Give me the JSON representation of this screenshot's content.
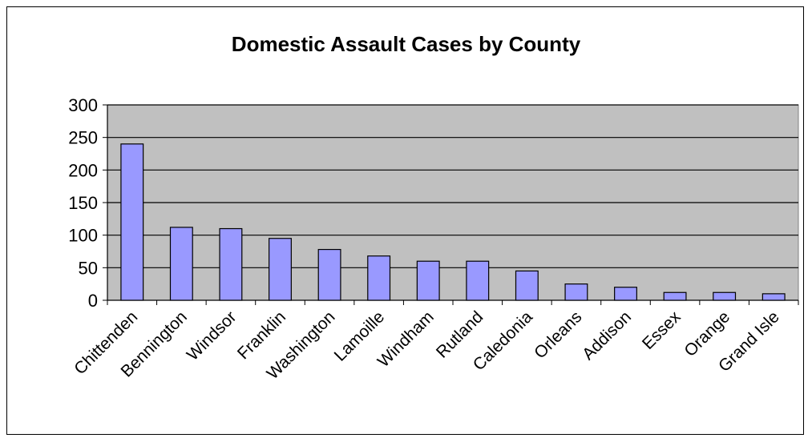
{
  "chart_data": {
    "type": "bar",
    "title": "Domestic Assault Cases by County",
    "xlabel": "",
    "ylabel": "",
    "categories": [
      "Chittenden",
      "Bennington",
      "Windsor",
      "Franklin",
      "Washington",
      "Lamoille",
      "Windham",
      "Rutland",
      "Caledonia",
      "Orleans",
      "Addison",
      "Essex",
      "Orange",
      "Grand Isle"
    ],
    "values": [
      240,
      112,
      110,
      95,
      78,
      68,
      60,
      60,
      45,
      25,
      20,
      12,
      12,
      10
    ],
    "ylim": [
      0,
      300
    ],
    "yticks": [
      "0",
      "50",
      "100",
      "150",
      "200",
      "250",
      "300"
    ],
    "grid": true,
    "legend": "none",
    "colors": {
      "bar_fill": "#9999ff",
      "bar_stroke": "#000000",
      "plot_background": "#c0c0c0",
      "gridline": "#000000"
    }
  }
}
